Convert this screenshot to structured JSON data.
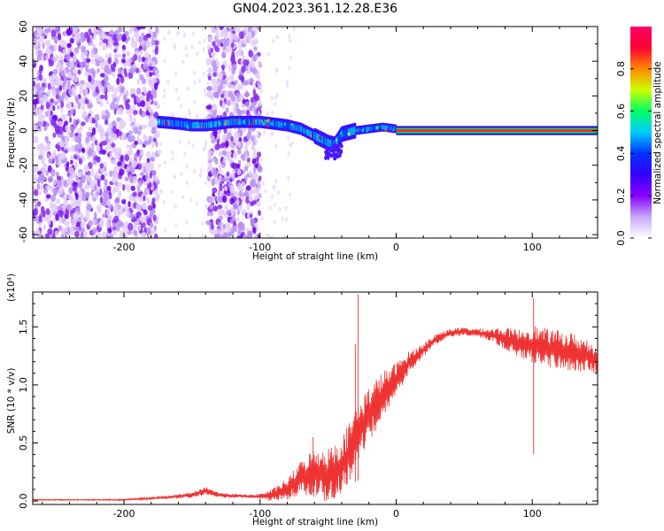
{
  "figure": {
    "title": "GN04.2023.361.12.28.E36"
  },
  "chart_data": [
    {
      "type": "heatmap",
      "name": "spectrogram",
      "xlabel": "Height of straight line (km)",
      "ylabel": "Frequency (Hz)",
      "xlim": [
        -267,
        148
      ],
      "ylim": [
        -62,
        60
      ],
      "xticks": [
        -200,
        -100,
        0,
        100
      ],
      "xtick_labels": [
        "-200",
        "-100",
        "0",
        "100"
      ],
      "yticks": [
        60,
        40,
        20,
        0,
        -20,
        -40,
        -60
      ],
      "ytick_labels": [
        "60",
        "40",
        "20",
        "0",
        "-20",
        "-40",
        "-60"
      ],
      "grid": false,
      "colorbar": {
        "label": "Normalized spectral amplitude",
        "range": [
          0,
          1
        ],
        "ticks": [
          0.0,
          0.2,
          0.4,
          0.6,
          0.8
        ],
        "tick_labels": [
          "0.0",
          "0.2",
          "0.4",
          "0.6",
          "0.8"
        ],
        "colormap": [
          "#ffffff",
          "#c8a8f8",
          "#8800ff",
          "#3300ff",
          "#0033ff",
          "#00ccff",
          "#00ff66",
          "#ccff00",
          "#ff8800",
          "#ff0033",
          "#ff0066"
        ]
      },
      "noise_regions_x": [
        [
          -267,
          -175
        ],
        [
          -138,
          -100
        ]
      ],
      "ridge": {
        "x": [
          -175,
          -160,
          -150,
          -140,
          -120,
          -100,
          -90,
          -80,
          -70,
          -60,
          -50,
          -45,
          -40,
          -30,
          -20,
          -10,
          0,
          20,
          60,
          100,
          148
        ],
        "freq": [
          5,
          4,
          3,
          3,
          5,
          5,
          4,
          3,
          1,
          -3,
          -7,
          -8,
          -2,
          0,
          1,
          2,
          1,
          0,
          0,
          0,
          0
        ]
      },
      "strong_line_x": [
        0,
        148
      ]
    },
    {
      "type": "line",
      "name": "snr",
      "xlabel": "Height of straight line (km)",
      "ylabel": "SNR (10 * v/v)",
      "y_multiplier": "(x10⁴)",
      "xlim": [
        -267,
        148
      ],
      "ylim": [
        -0.03,
        1.8
      ],
      "xticks": [
        -200,
        -100,
        0,
        100
      ],
      "xtick_labels": [
        "-200",
        "-100",
        "0",
        "100"
      ],
      "yticks": [
        0.0,
        0.5,
        1.0,
        1.5
      ],
      "ytick_labels": [
        "0.0",
        "0.5",
        "1.0",
        "1.5"
      ],
      "grid": false,
      "series": [
        {
          "color": "#ee3333",
          "x": [
            -267,
            -230,
            -200,
            -170,
            -150,
            -140,
            -130,
            -110,
            -100,
            -90,
            -80,
            -70,
            -60,
            -50,
            -40,
            -35,
            -30,
            -20,
            -10,
            0,
            10,
            20,
            30,
            40,
            50,
            60,
            70,
            80,
            90,
            100,
            110,
            120,
            130,
            140,
            148
          ],
          "y": [
            0.01,
            0.01,
            0.01,
            0.03,
            0.05,
            0.09,
            0.05,
            0.04,
            0.04,
            0.05,
            0.1,
            0.2,
            0.25,
            0.22,
            0.3,
            0.4,
            0.55,
            0.75,
            0.9,
            1.05,
            1.2,
            1.3,
            1.4,
            1.45,
            1.46,
            1.45,
            1.43,
            1.4,
            1.36,
            1.35,
            1.32,
            1.3,
            1.28,
            1.25,
            1.22
          ],
          "noise": [
            0.004,
            0.004,
            0.005,
            0.01,
            0.02,
            0.03,
            0.02,
            0.01,
            0.02,
            0.05,
            0.08,
            0.12,
            0.18,
            0.2,
            0.22,
            0.22,
            0.22,
            0.2,
            0.18,
            0.12,
            0.08,
            0.05,
            0.04,
            0.03,
            0.03,
            0.03,
            0.05,
            0.08,
            0.1,
            0.14,
            0.14,
            0.14,
            0.14,
            0.12,
            0.1
          ]
        }
      ],
      "spikes": [
        {
          "x": -28,
          "y": 1.78
        },
        {
          "x": -30,
          "y": 1.35
        },
        {
          "x": 101,
          "y": 1.75
        },
        {
          "x": -61,
          "y": 0.55
        }
      ]
    }
  ]
}
